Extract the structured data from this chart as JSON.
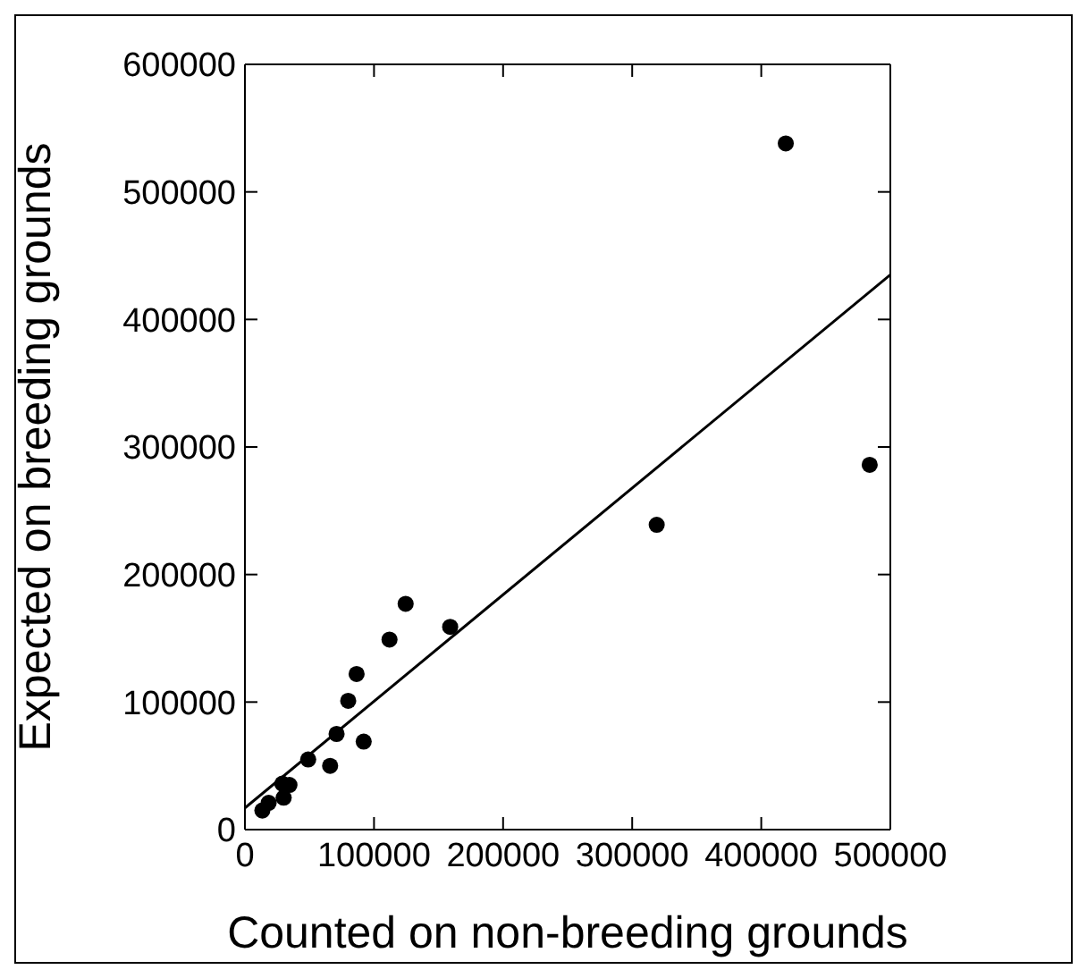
{
  "chart_data": {
    "type": "scatter",
    "xlabel": "Counted on non-breeding grounds",
    "ylabel": "Expected on breeding grounds",
    "xlim": [
      0,
      500000
    ],
    "ylim": [
      0,
      600000
    ],
    "xticks": [
      0,
      100000,
      200000,
      300000,
      400000,
      500000
    ],
    "yticks": [
      0,
      100000,
      200000,
      300000,
      400000,
      500000,
      600000
    ],
    "series": [
      {
        "marker": "circle",
        "color": "#000000",
        "x": [
          13500,
          18400,
          29000,
          30000,
          34500,
          49000,
          66000,
          71000,
          80000,
          86500,
          92000,
          112000,
          124500,
          159000,
          319000,
          419000,
          484000
        ],
        "values": [
          15000,
          21000,
          36000,
          25000,
          35000,
          55000,
          50000,
          75000,
          101000,
          122000,
          69000,
          149000,
          177000,
          159000,
          239000,
          538000,
          286000
        ]
      },
      {
        "type": "line",
        "color": "#000000",
        "line_style": "solid",
        "x": [
          0,
          500000
        ],
        "values": [
          17000,
          435000
        ]
      }
    ]
  }
}
